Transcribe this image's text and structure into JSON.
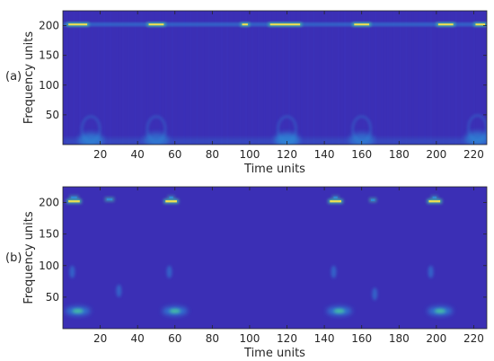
{
  "chart_data": [
    {
      "type": "heatmap",
      "panel_label": "(a)",
      "xlabel": "Time units",
      "ylabel": "Frequency units",
      "xlim": [
        0,
        227
      ],
      "ylim": [
        0,
        225
      ],
      "xticks": [
        20,
        40,
        60,
        80,
        100,
        120,
        140,
        160,
        180,
        200,
        220
      ],
      "yticks": [
        50,
        100,
        150,
        200
      ],
      "colors": {
        "background": "#3b2fb5",
        "low": "#3d3fd0",
        "mid": "#2f8bd8",
        "high": "#fde34a",
        "accent": "#46c3a0"
      },
      "bright_band": {
        "frequency": 202,
        "segments": [
          [
            2,
            14
          ],
          [
            45,
            55
          ],
          [
            95,
            100
          ],
          [
            110,
            128
          ],
          [
            155,
            165
          ],
          [
            200,
            210
          ],
          [
            220,
            227
          ]
        ]
      },
      "low_freq_blobs": [
        {
          "t": 15,
          "f": 8,
          "intensity": 0.7
        },
        {
          "t": 50,
          "f": 8,
          "intensity": 0.6
        },
        {
          "t": 120,
          "f": 8,
          "intensity": 0.8
        },
        {
          "t": 160,
          "f": 8,
          "intensity": 0.6
        },
        {
          "t": 222,
          "f": 10,
          "intensity": 0.7
        }
      ]
    },
    {
      "type": "heatmap",
      "panel_label": "(b)",
      "xlabel": "Time units",
      "ylabel": "Frequency units",
      "xlim": [
        0,
        227
      ],
      "ylim": [
        0,
        225
      ],
      "xticks": [
        20,
        40,
        60,
        80,
        100,
        120,
        140,
        160,
        180,
        200,
        220
      ],
      "yticks": [
        50,
        100,
        150,
        200
      ],
      "colors": {
        "background": "#3b2fb5",
        "low": "#3d3fd0",
        "mid": "#2f8bd8",
        "high": "#fde34a",
        "accent": "#46c3a0"
      },
      "bright_spots": [
        {
          "t": 6,
          "f": 202,
          "width": 8,
          "intensity": 1.0
        },
        {
          "t": 6,
          "f": 208,
          "width": 5,
          "intensity": 0.6
        },
        {
          "t": 25,
          "f": 205,
          "width": 5,
          "intensity": 0.7
        },
        {
          "t": 58,
          "f": 202,
          "width": 8,
          "intensity": 1.0
        },
        {
          "t": 58,
          "f": 208,
          "width": 4,
          "intensity": 0.5
        },
        {
          "t": 146,
          "f": 202,
          "width": 8,
          "intensity": 1.0
        },
        {
          "t": 146,
          "f": 208,
          "width": 4,
          "intensity": 0.5
        },
        {
          "t": 166,
          "f": 204,
          "width": 4,
          "intensity": 0.7
        },
        {
          "t": 199,
          "f": 202,
          "width": 8,
          "intensity": 1.0
        },
        {
          "t": 199,
          "f": 208,
          "width": 4,
          "intensity": 0.5
        }
      ],
      "low_freq_blobs": [
        {
          "t": 8,
          "f": 28,
          "intensity": 0.8
        },
        {
          "t": 60,
          "f": 28,
          "intensity": 0.8
        },
        {
          "t": 148,
          "f": 28,
          "intensity": 0.8
        },
        {
          "t": 202,
          "f": 28,
          "intensity": 0.8
        }
      ],
      "streaks": [
        {
          "t": 5,
          "f": 90
        },
        {
          "t": 30,
          "f": 60
        },
        {
          "t": 57,
          "f": 90
        },
        {
          "t": 145,
          "f": 90
        },
        {
          "t": 167,
          "f": 55
        },
        {
          "t": 197,
          "f": 90
        }
      ]
    }
  ]
}
